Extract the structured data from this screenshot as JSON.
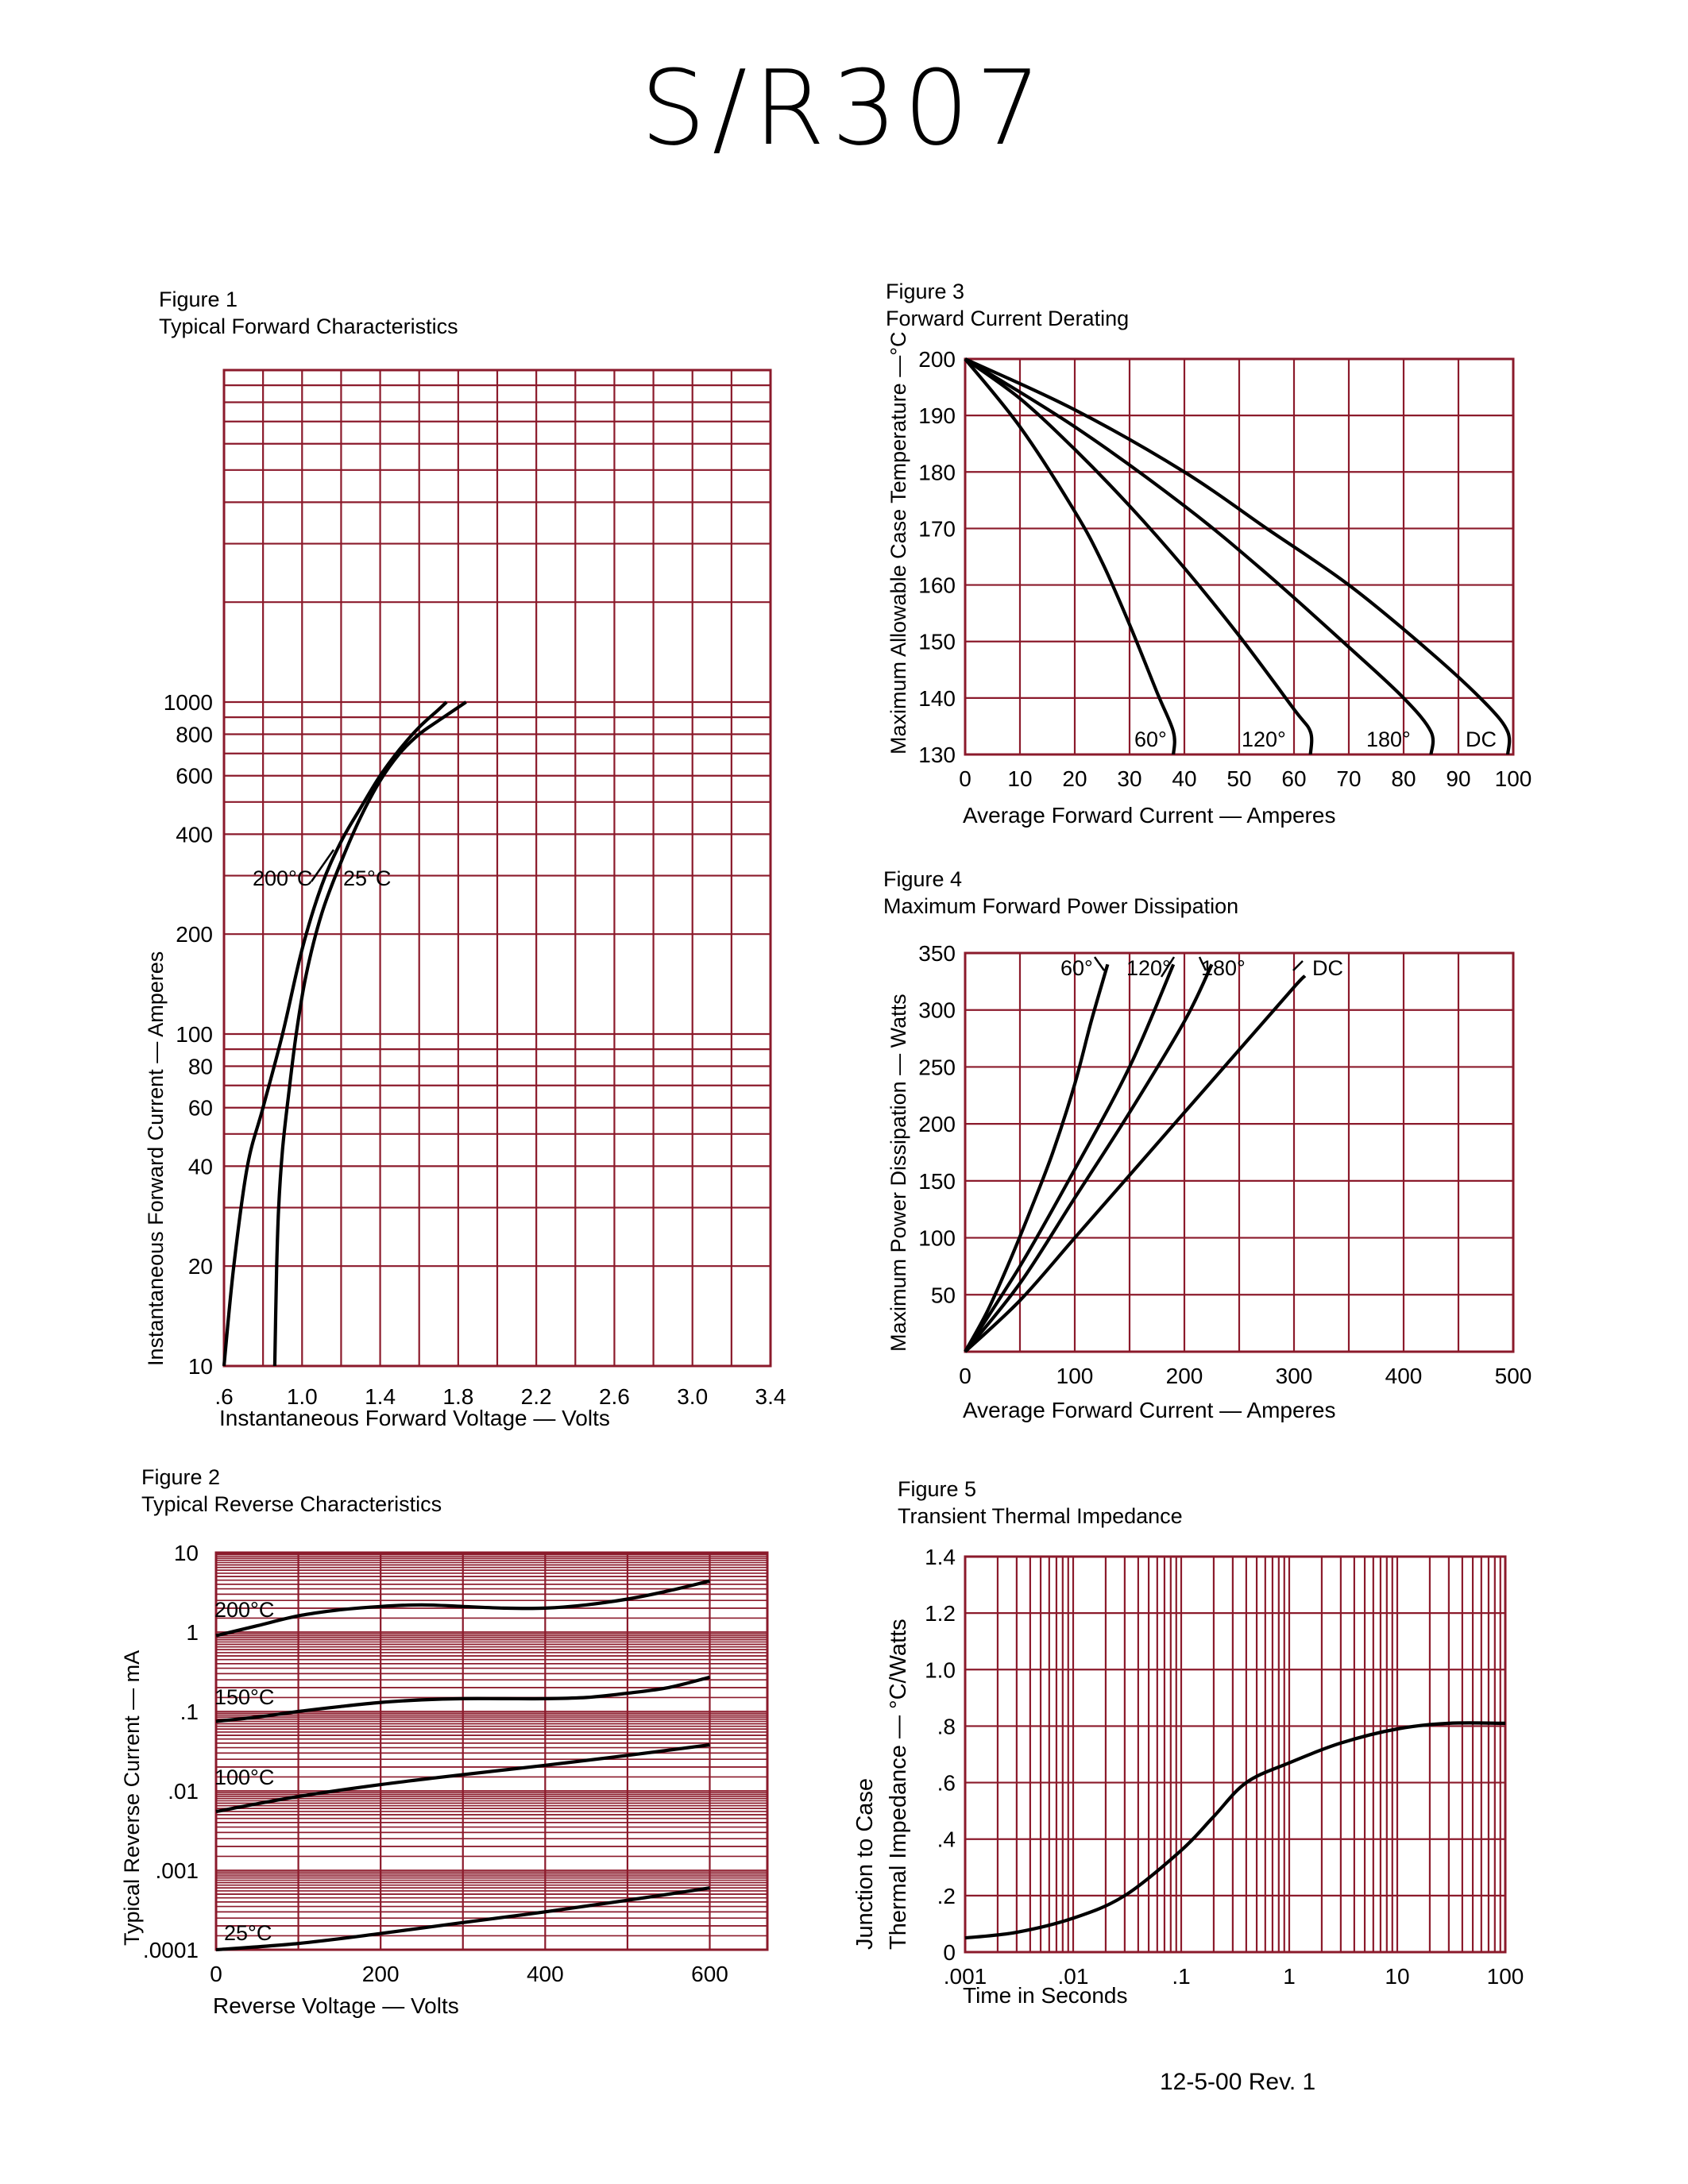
{
  "document": {
    "title": "S/R307",
    "footer": "12-5-00   Rev. 1",
    "grid_color": "#8b1a2b",
    "curve_color": "#000000"
  },
  "chart_data": [
    {
      "id": "fig1",
      "type": "line",
      "figure_label": "Figure 1",
      "title": "Typical Forward Characteristics",
      "xlabel": "Instantaneous Forward Voltage — Volts",
      "ylabel": "Instantaneous Forward Current — Amperes",
      "x_scale": "linear",
      "y_scale": "log",
      "xlim": [
        0.6,
        3.4
      ],
      "ylim": [
        10,
        10000
      ],
      "x_ticks": [
        0.6,
        1.0,
        1.4,
        1.8,
        2.2,
        2.6,
        3.0,
        3.4
      ],
      "x_tick_labels": [
        ".6",
        "1.0",
        "1.4",
        "1.8",
        "2.2",
        "2.6",
        "3.0",
        "3.4"
      ],
      "y_ticks": [
        10,
        20,
        40,
        60,
        80,
        100,
        200,
        400,
        600,
        800,
        1000
      ],
      "y_tick_labels": [
        "10",
        "20",
        "40",
        "60",
        "80",
        "100",
        "200",
        "400",
        "600",
        "800",
        "1000"
      ],
      "grid": true,
      "series": [
        {
          "name": "200°C",
          "x": [
            0.6,
            0.65,
            0.72,
            0.8,
            0.9,
            1.0,
            1.1,
            1.2,
            1.3,
            1.4,
            1.5,
            1.6,
            1.7,
            1.74
          ],
          "y": [
            10,
            20,
            40,
            60,
            100,
            180,
            280,
            380,
            480,
            600,
            720,
            840,
            950,
            1000
          ]
        },
        {
          "name": "25°C",
          "x": [
            0.86,
            0.87,
            0.88,
            0.9,
            0.93,
            0.97,
            1.02,
            1.1,
            1.2,
            1.3,
            1.4,
            1.5,
            1.6,
            1.7,
            1.84
          ],
          "y": [
            10,
            20,
            30,
            45,
            65,
            100,
            150,
            230,
            330,
            450,
            580,
            700,
            800,
            880,
            1000
          ]
        }
      ],
      "annotations": [
        "200°C",
        "25°C"
      ]
    },
    {
      "id": "fig2",
      "type": "line",
      "figure_label": "Figure 2",
      "title": "Typical Reverse Characteristics",
      "xlabel": "Reverse Voltage — Volts",
      "ylabel": "Typical Reverse Current — mA",
      "x_scale": "linear",
      "y_scale": "log",
      "xlim": [
        0,
        670
      ],
      "ylim": [
        0.0001,
        10
      ],
      "x_ticks": [
        0,
        200,
        400,
        600
      ],
      "x_tick_labels": [
        "0",
        "200",
        "400",
        "600"
      ],
      "y_ticks": [
        0.0001,
        0.001,
        0.01,
        0.1,
        1,
        10
      ],
      "y_tick_labels": [
        ".0001",
        ".001",
        ".01",
        ".1",
        "1",
        "10"
      ],
      "grid": true,
      "series": [
        {
          "name": "200°C",
          "x": [
            0,
            50,
            100,
            150,
            200,
            250,
            300,
            350,
            400,
            450,
            500,
            550,
            600
          ],
          "y": [
            0.9,
            1.2,
            1.6,
            1.9,
            2.1,
            2.2,
            2.1,
            2.0,
            2.0,
            2.2,
            2.6,
            3.3,
            4.4
          ]
        },
        {
          "name": "150°C",
          "x": [
            0,
            50,
            100,
            150,
            200,
            250,
            300,
            350,
            400,
            450,
            500,
            550,
            600
          ],
          "y": [
            0.075,
            0.085,
            0.1,
            0.115,
            0.13,
            0.14,
            0.145,
            0.145,
            0.145,
            0.15,
            0.17,
            0.2,
            0.27
          ]
        },
        {
          "name": "100°C",
          "x": [
            0,
            100,
            200,
            300,
            400,
            500,
            600
          ],
          "y": [
            0.0055,
            0.0085,
            0.012,
            0.016,
            0.021,
            0.028,
            0.038
          ]
        },
        {
          "name": "25°C",
          "x": [
            0,
            100,
            200,
            300,
            400,
            500,
            600
          ],
          "y": [
            0.0001,
            0.00012,
            0.00016,
            0.00022,
            0.0003,
            0.00042,
            0.0006
          ]
        }
      ],
      "annotations": [
        "200°C",
        "150°C",
        "100°C",
        "25°C"
      ]
    },
    {
      "id": "fig3",
      "type": "line",
      "figure_label": "Figure 3",
      "title": "Forward Current Derating",
      "xlabel": "Average Forward Current — Amperes",
      "ylabel": "Maximum Allowable Case Temperature —°C",
      "x_scale": "linear",
      "y_scale": "linear",
      "xlim": [
        0,
        100
      ],
      "ylim": [
        130,
        200
      ],
      "x_ticks": [
        0,
        10,
        20,
        30,
        40,
        50,
        60,
        70,
        80,
        90,
        100
      ],
      "x_tick_labels": [
        "0",
        "10",
        "20",
        "30",
        "40",
        "50",
        "60",
        "70",
        "80",
        "90",
        "100"
      ],
      "y_ticks": [
        130,
        140,
        150,
        160,
        170,
        180,
        190,
        200
      ],
      "y_tick_labels": [
        "130",
        "140",
        "150",
        "160",
        "170",
        "180",
        "190",
        "200"
      ],
      "grid": true,
      "series": [
        {
          "name": "60°",
          "x": [
            0,
            10,
            20,
            25,
            30,
            35,
            38,
            38
          ],
          "y": [
            200,
            188,
            173,
            164,
            153,
            141,
            134,
            130
          ]
        },
        {
          "name": "120°",
          "x": [
            0,
            10,
            20,
            30,
            40,
            50,
            60,
            63,
            63
          ],
          "y": [
            200,
            193,
            184,
            174,
            163,
            151,
            138,
            134,
            130
          ]
        },
        {
          "name": "180°",
          "x": [
            0,
            20,
            40,
            55,
            70,
            80,
            85,
            85
          ],
          "y": [
            200,
            188,
            174,
            162,
            149,
            140,
            134,
            130
          ]
        },
        {
          "name": "DC",
          "x": [
            0,
            20,
            40,
            55,
            70,
            85,
            95,
            99,
            99
          ],
          "y": [
            200,
            191,
            180,
            170,
            160,
            148,
            139,
            134,
            130
          ]
        }
      ],
      "annotations": [
        "60°",
        "120°",
        "180°",
        "DC"
      ]
    },
    {
      "id": "fig4",
      "type": "line",
      "figure_label": "Figure 4",
      "title": "Maximum Forward Power Dissipation",
      "xlabel": "Average Forward Current — Amperes",
      "ylabel": "Maximum Power Dissipation — Watts",
      "x_scale": "linear",
      "y_scale": "linear",
      "xlim": [
        0,
        500
      ],
      "ylim": [
        0,
        350
      ],
      "x_ticks": [
        0,
        100,
        200,
        300,
        400,
        500
      ],
      "x_tick_labels": [
        "0",
        "100",
        "200",
        "300",
        "400",
        "500"
      ],
      "y_ticks": [
        50,
        100,
        150,
        200,
        250,
        300,
        350
      ],
      "y_tick_labels": [
        "50",
        "100",
        "150",
        "200",
        "250",
        "300",
        "350"
      ],
      "grid": true,
      "series": [
        {
          "name": "60°",
          "x": [
            0,
            20,
            40,
            60,
            80,
            100,
            115,
            130
          ],
          "y": [
            0,
            35,
            78,
            125,
            175,
            235,
            290,
            340
          ]
        },
        {
          "name": "120°",
          "x": [
            0,
            50,
            100,
            150,
            190
          ],
          "y": [
            0,
            75,
            160,
            250,
            340
          ]
        },
        {
          "name": "180°",
          "x": [
            0,
            50,
            100,
            150,
            200,
            225
          ],
          "y": [
            0,
            60,
            135,
            210,
            290,
            340
          ]
        },
        {
          "name": "DC",
          "x": [
            0,
            50,
            100,
            150,
            200,
            250,
            300,
            310
          ],
          "y": [
            0,
            45,
            100,
            155,
            210,
            265,
            320,
            330
          ]
        }
      ],
      "annotations": [
        "60°",
        "120°",
        "180°",
        "DC"
      ]
    },
    {
      "id": "fig5",
      "type": "line",
      "figure_label": "Figure 5",
      "title": "Transient Thermal Impedance",
      "xlabel": "Time in Seconds",
      "ylabel_lines": [
        "Junction to Case",
        "Thermal Impedance — °C/Watts"
      ],
      "x_scale": "log",
      "y_scale": "linear",
      "xlim": [
        0.001,
        100
      ],
      "ylim": [
        0,
        1.4
      ],
      "x_ticks": [
        0.001,
        0.01,
        0.1,
        1,
        10,
        100
      ],
      "x_tick_labels": [
        ".001",
        ".01",
        ".1",
        "1",
        "10",
        "100"
      ],
      "y_ticks": [
        0,
        0.2,
        0.4,
        0.6,
        0.8,
        1.0,
        1.2,
        1.4
      ],
      "y_tick_labels": [
        "0",
        ".2",
        ".4",
        ".6",
        ".8",
        "1.0",
        "1.2",
        "1.4"
      ],
      "grid": true,
      "series": [
        {
          "name": "",
          "x": [
            0.001,
            0.003,
            0.01,
            0.03,
            0.1,
            0.2,
            0.4,
            1,
            3,
            10,
            30,
            100
          ],
          "y": [
            0.05,
            0.07,
            0.12,
            0.2,
            0.36,
            0.48,
            0.6,
            0.67,
            0.74,
            0.79,
            0.81,
            0.81
          ]
        }
      ],
      "annotations": []
    }
  ]
}
